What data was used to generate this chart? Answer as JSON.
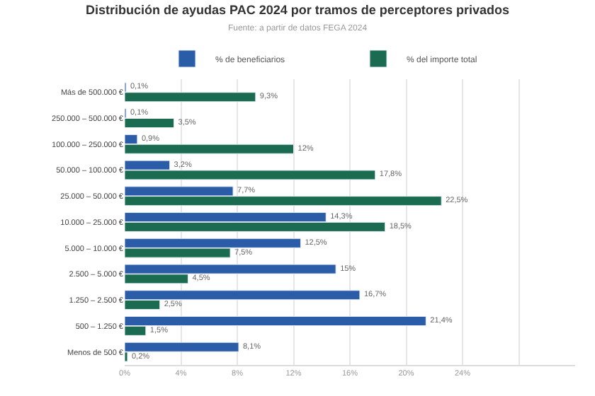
{
  "chart_data": {
    "type": "bar",
    "orientation": "horizontal",
    "title": "Distribución de ayudas PAC 2024 por tramos de perceptores privados",
    "subtitle": "Fuente: a partir de datos FEGA 2024",
    "categories": [
      "Más de 500.000 €",
      "250.000 – 500.000 €",
      "100.000 – 250.000 €",
      "50.000 – 100.000 €",
      "25.000 – 50.000 €",
      "10.000 – 25.000 €",
      "5.000 – 10.000 €",
      "2.500 – 5.000 €",
      "1.250 – 2.500 €",
      "500 – 1.250 €",
      "Menos de 500 €"
    ],
    "series": [
      {
        "name": "% de beneficiarios",
        "color": "#2a5ca8",
        "values": [
          0.1,
          0.1,
          0.9,
          3.2,
          7.7,
          14.3,
          12.5,
          15,
          16.7,
          21.4,
          8.1
        ],
        "value_labels": [
          "0,1%",
          "0,1%",
          "0,9%",
          "3,2%",
          "7,7%",
          "14,3%",
          "12,5%",
          "15%",
          "16,7%",
          "21,4%",
          "8,1%"
        ]
      },
      {
        "name": "% del importe total",
        "color": "#1a6b4f",
        "values": [
          9.3,
          3.5,
          12,
          17.8,
          22.5,
          18.5,
          7.5,
          4.5,
          2.5,
          1.5,
          0.2
        ],
        "value_labels": [
          "9,3%",
          "3,5%",
          "12%",
          "17,8%",
          "22,5%",
          "18,5%",
          "7,5%",
          "4,5%",
          "2,5%",
          "1,5%",
          "0,2%"
        ]
      }
    ],
    "xlim": [
      0,
      32
    ],
    "xticks": [
      {
        "value": 0,
        "label": "0%"
      },
      {
        "value": 4,
        "label": "4%"
      },
      {
        "value": 8,
        "label": "8%"
      },
      {
        "value": 12,
        "label": "12%"
      },
      {
        "value": 16,
        "label": "16%"
      },
      {
        "value": 20,
        "label": "20%"
      },
      {
        "value": 24,
        "label": "24%"
      },
      {
        "value": 28,
        "label": null
      }
    ],
    "grid": "x",
    "legend": "top"
  }
}
